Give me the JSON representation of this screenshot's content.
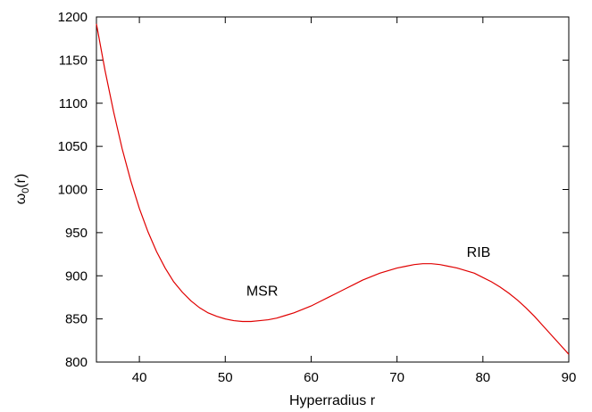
{
  "chart_data": {
    "type": "line",
    "title": "",
    "xlabel": "Hyperradius r",
    "ylabel_main": "ω",
    "ylabel_sub": "0",
    "ylabel_tail": "(r)",
    "xlim": [
      35,
      90
    ],
    "ylim": [
      800,
      1200
    ],
    "xticks": [
      40,
      50,
      60,
      70,
      80,
      90
    ],
    "yticks": [
      800,
      850,
      900,
      950,
      1000,
      1050,
      1100,
      1150,
      1200
    ],
    "grid": false,
    "series": [
      {
        "color": "#e00000",
        "x": [
          35,
          36,
          37,
          38,
          39,
          40,
          41,
          42,
          43,
          44,
          45,
          46,
          47,
          48,
          49,
          50,
          51,
          52,
          53,
          54,
          55,
          56,
          57,
          58,
          59,
          60,
          61,
          62,
          63,
          64,
          65,
          66,
          67,
          68,
          69,
          70,
          71,
          72,
          73,
          74,
          75,
          76,
          77,
          78,
          79,
          80,
          81,
          82,
          83,
          84,
          85,
          86,
          87,
          88,
          89,
          90
        ],
        "y": [
          1192,
          1138,
          1090,
          1047,
          1010,
          978,
          951,
          928,
          909,
          893,
          881,
          871,
          863,
          857,
          853,
          850,
          848,
          847,
          847,
          848,
          849,
          851,
          854,
          857,
          861,
          865,
          870,
          875,
          880,
          885,
          890,
          895,
          899,
          903,
          906,
          909,
          911,
          913,
          914,
          914,
          913,
          911,
          909,
          906,
          903,
          898,
          893,
          887,
          880,
          872,
          863,
          853,
          842,
          831,
          820,
          809
        ]
      }
    ],
    "annotations": [
      {
        "text": "MSR",
        "x": 54.3,
        "y": 877
      },
      {
        "text": "RIB",
        "x": 79.5,
        "y": 922
      }
    ]
  }
}
